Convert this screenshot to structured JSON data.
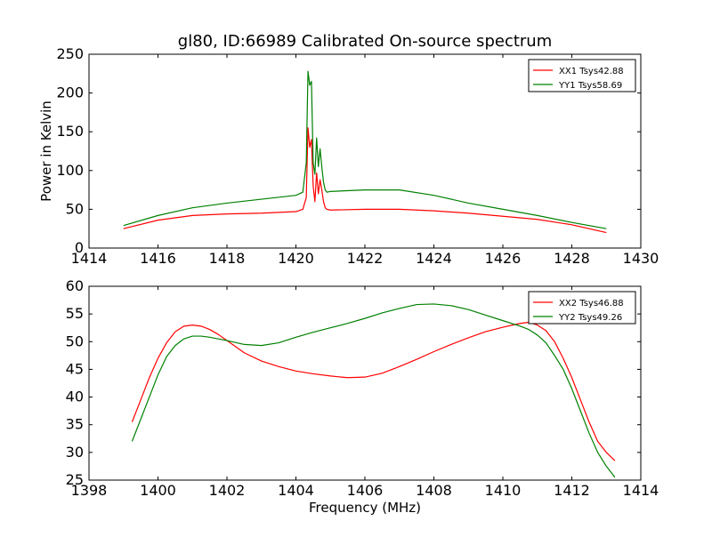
{
  "chart_data": {
    "title": "gl80, ID:66989 Calibrated On-source spectrum",
    "panels": [
      {
        "type": "line",
        "xlim": [
          1414,
          1430
        ],
        "ylim": [
          0,
          250
        ],
        "xticks": [
          1414,
          1416,
          1418,
          1420,
          1422,
          1424,
          1426,
          1428,
          1430
        ],
        "yticks": [
          0,
          50,
          100,
          150,
          200,
          250
        ],
        "xlabel": "",
        "ylabel": "Power in Kelvin",
        "legend": "top-right",
        "grid": false,
        "series": [
          {
            "name": "XX1 Tsys42.88",
            "color": "#ff0000",
            "x": [
              1415.0,
              1416.0,
              1417.0,
              1418.0,
              1419.0,
              1420.0,
              1420.2,
              1420.3,
              1420.35,
              1420.4,
              1420.45,
              1420.5,
              1420.55,
              1420.6,
              1420.65,
              1420.7,
              1420.75,
              1420.8,
              1420.85,
              1420.9,
              1421.0,
              1422.0,
              1423.0,
              1424.0,
              1425.0,
              1426.0,
              1427.0,
              1428.0,
              1429.0
            ],
            "y": [
              25,
              36,
              42,
              44,
              45,
              47,
              50,
              65,
              155,
              130,
              140,
              80,
              60,
              97,
              70,
              88,
              75,
              60,
              52,
              50,
              49,
              50,
              50,
              48,
              45,
              41,
              37,
              30,
              20
            ]
          },
          {
            "name": "YY1 Tsys58.69",
            "color": "#008000",
            "x": [
              1415.0,
              1416.0,
              1417.0,
              1418.0,
              1419.0,
              1420.0,
              1420.2,
              1420.3,
              1420.35,
              1420.4,
              1420.45,
              1420.5,
              1420.55,
              1420.6,
              1420.65,
              1420.7,
              1420.75,
              1420.8,
              1420.85,
              1420.9,
              1421.0,
              1422.0,
              1423.0,
              1424.0,
              1425.0,
              1426.0,
              1427.0,
              1428.0,
              1429.0
            ],
            "y": [
              29,
              42,
              52,
              58,
              63,
              68,
              72,
              110,
              228,
              210,
              215,
              110,
              95,
              142,
              105,
              128,
              105,
              85,
              75,
              72,
              73,
              75,
              75,
              68,
              58,
              50,
              42,
              33,
              25
            ]
          }
        ]
      },
      {
        "type": "line",
        "xlim": [
          1398,
          1414
        ],
        "ylim": [
          25,
          60
        ],
        "xticks": [
          1398,
          1400,
          1402,
          1404,
          1406,
          1408,
          1410,
          1412,
          1414
        ],
        "yticks": [
          25,
          30,
          35,
          40,
          45,
          50,
          55,
          60
        ],
        "xlabel": "Frequency (MHz)",
        "ylabel": "",
        "legend": "top-right",
        "grid": false,
        "series": [
          {
            "name": "XX2 Tsys46.88",
            "color": "#ff0000",
            "x": [
              1399.25,
              1399.5,
              1399.75,
              1400.0,
              1400.25,
              1400.5,
              1400.75,
              1401.0,
              1401.25,
              1401.5,
              1401.75,
              1402.0,
              1402.5,
              1403.0,
              1403.5,
              1404.0,
              1404.5,
              1405.0,
              1405.5,
              1406.0,
              1406.5,
              1407.0,
              1407.5,
              1408.0,
              1408.5,
              1409.0,
              1409.5,
              1410.0,
              1410.5,
              1410.75,
              1411.0,
              1411.25,
              1411.5,
              1411.75,
              1412.0,
              1412.25,
              1412.5,
              1412.75,
              1413.0,
              1413.25
            ],
            "y": [
              35.5,
              39.5,
              43.5,
              47,
              49.8,
              51.8,
              52.8,
              53,
              52.8,
              52.2,
              51.3,
              50.2,
              48,
              46.5,
              45.5,
              44.7,
              44.2,
              43.8,
              43.5,
              43.6,
              44.3,
              45.5,
              46.8,
              48.2,
              49.5,
              50.7,
              51.8,
              52.6,
              53.3,
              53.5,
              53,
              52,
              50,
              47,
              43.5,
              39.5,
              35.5,
              32,
              30,
              28.5
            ]
          },
          {
            "name": "YY2 Tsys49.26",
            "color": "#008000",
            "x": [
              1399.25,
              1399.5,
              1399.75,
              1400.0,
              1400.25,
              1400.5,
              1400.75,
              1401.0,
              1401.25,
              1401.5,
              1401.75,
              1402.0,
              1402.5,
              1403.0,
              1403.5,
              1404.0,
              1404.5,
              1405.0,
              1405.5,
              1406.0,
              1406.5,
              1407.0,
              1407.5,
              1408.0,
              1408.5,
              1409.0,
              1409.5,
              1410.0,
              1410.5,
              1410.75,
              1411.0,
              1411.25,
              1411.5,
              1411.75,
              1412.0,
              1412.25,
              1412.5,
              1412.75,
              1413.0,
              1413.25
            ],
            "y": [
              32,
              36,
              40,
              44,
              47.3,
              49.3,
              50.5,
              51,
              51,
              50.8,
              50.5,
              50.2,
              49.5,
              49.3,
              49.8,
              50.8,
              51.7,
              52.5,
              53.3,
              54.2,
              55.2,
              56,
              56.7,
              56.8,
              56.5,
              55.8,
              54.8,
              53.8,
              52.8,
              52.2,
              51.2,
              49.8,
              47.5,
              45,
              41.5,
              37.5,
              33.5,
              30,
              27.5,
              25.5
            ]
          }
        ]
      }
    ]
  }
}
